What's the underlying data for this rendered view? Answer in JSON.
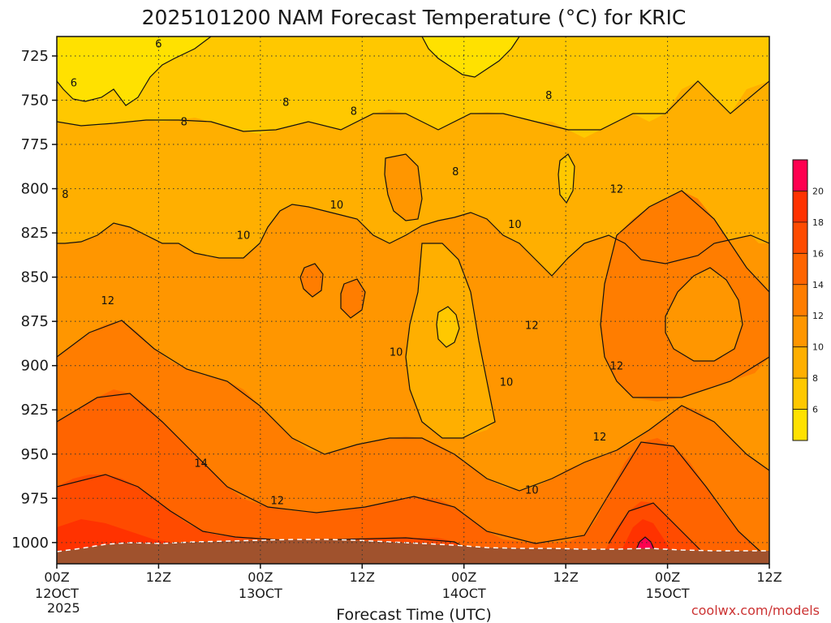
{
  "chart_data": {
    "type": "heatmap",
    "title": "2025101200 NAM Forecast Temperature (°C) for KRIC",
    "xlabel": "Forecast Time (UTC)",
    "ylabel": "",
    "y_ticks": [
      "725",
      "750",
      "775",
      "800",
      "825",
      "850",
      "875",
      "900",
      "925",
      "950",
      "975",
      "1000"
    ],
    "y_values": [
      725,
      750,
      775,
      800,
      825,
      850,
      875,
      900,
      925,
      950,
      975,
      1000
    ],
    "y_range": [
      714,
      1012
    ],
    "x_ticks": [
      {
        "hour": 0,
        "line1": "00Z",
        "line2": "12OCT",
        "line3": "2025"
      },
      {
        "hour": 12,
        "line1": "12Z",
        "line2": "",
        "line3": ""
      },
      {
        "hour": 24,
        "line1": "00Z",
        "line2": "13OCT",
        "line3": ""
      },
      {
        "hour": 36,
        "line1": "12Z",
        "line2": "",
        "line3": ""
      },
      {
        "hour": 48,
        "line1": "00Z",
        "line2": "14OCT",
        "line3": ""
      },
      {
        "hour": 60,
        "line1": "12Z",
        "line2": "",
        "line3": ""
      },
      {
        "hour": 72,
        "line1": "00Z",
        "line2": "15OCT",
        "line3": ""
      },
      {
        "hour": 84,
        "line1": "12Z",
        "line2": "",
        "line3": ""
      }
    ],
    "x_range_hours": [
      0,
      84
    ],
    "grid": true,
    "colorbar": {
      "labels": [
        "6",
        "8",
        "10",
        "12",
        "14",
        "16",
        "18",
        "20"
      ],
      "levels": [
        4,
        6,
        8,
        10,
        12,
        14,
        16,
        18,
        20,
        22
      ],
      "colors": [
        "#ffe100",
        "#ffc800",
        "#ffaf00",
        "#ff9600",
        "#ff7d00",
        "#ff6400",
        "#ff4b00",
        "#ff3200",
        "#ff0050"
      ]
    },
    "contour_labels": [
      {
        "text": "6",
        "hour": 12,
        "p": 718
      },
      {
        "text": "6",
        "hour": 2,
        "p": 740
      },
      {
        "text": "8",
        "hour": 15,
        "p": 762
      },
      {
        "text": "8",
        "hour": 27,
        "p": 751
      },
      {
        "text": "8",
        "hour": 35,
        "p": 756
      },
      {
        "text": "8",
        "hour": 47,
        "p": 790
      },
      {
        "text": "8",
        "hour": 58,
        "p": 747
      },
      {
        "text": "8",
        "hour": 1,
        "p": 803
      },
      {
        "text": "10",
        "hour": 22,
        "p": 826
      },
      {
        "text": "10",
        "hour": 33,
        "p": 809
      },
      {
        "text": "10",
        "hour": 54,
        "p": 820
      },
      {
        "text": "10",
        "hour": 40,
        "p": 892
      },
      {
        "text": "10",
        "hour": 53,
        "p": 909
      },
      {
        "text": "10",
        "hour": 56,
        "p": 970
      },
      {
        "text": "12",
        "hour": 6,
        "p": 863
      },
      {
        "text": "12",
        "hour": 56,
        "p": 877
      },
      {
        "text": "12",
        "hour": 66,
        "p": 800
      },
      {
        "text": "12",
        "hour": 66,
        "p": 900
      },
      {
        "text": "12",
        "hour": 64,
        "p": 940
      },
      {
        "text": "12",
        "hour": 26,
        "p": 976
      },
      {
        "text": "14",
        "hour": 17,
        "p": 955
      }
    ],
    "terrain": {
      "label": "ground",
      "color": "#a0522d",
      "surface_pressure_approx": 1003
    }
  },
  "credit": "coolwx.com/models",
  "credit_color": "#cc3333"
}
